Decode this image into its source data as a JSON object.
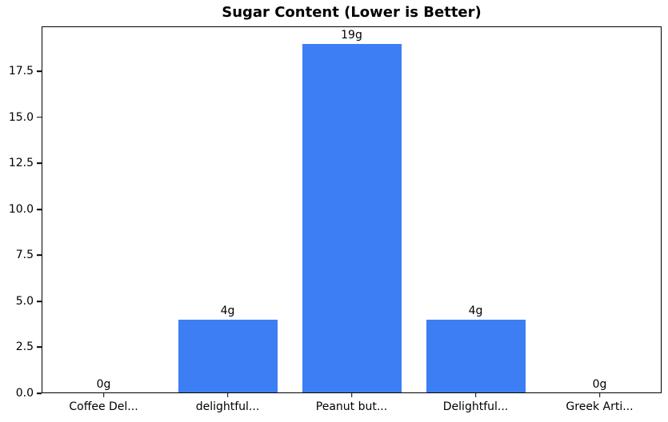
{
  "chart_data": {
    "type": "bar",
    "title": "Sugar Content (Lower is Better)",
    "categories": [
      "Coffee Del...",
      "delightful...",
      "Peanut but...",
      "Delightful...",
      "Greek Arti..."
    ],
    "values": [
      0,
      4,
      19,
      4,
      0
    ],
    "bar_labels": [
      "0g",
      "4g",
      "19g",
      "4g",
      "0g"
    ],
    "xlabel": "",
    "ylabel": "",
    "ylim": [
      0,
      19.95
    ],
    "yticks": [
      0.0,
      2.5,
      5.0,
      7.5,
      10.0,
      12.5,
      15.0,
      17.5
    ],
    "ytick_labels": [
      "0.0",
      "2.5",
      "5.0",
      "7.5",
      "10.0",
      "12.5",
      "15.0",
      "17.5"
    ],
    "bar_color": "#3d7ef5",
    "spine_color": "#000000",
    "text_color": "#000000",
    "background_color": "#ffffff",
    "bar_width_fraction": 0.8,
    "grid": false,
    "legend": "none"
  }
}
